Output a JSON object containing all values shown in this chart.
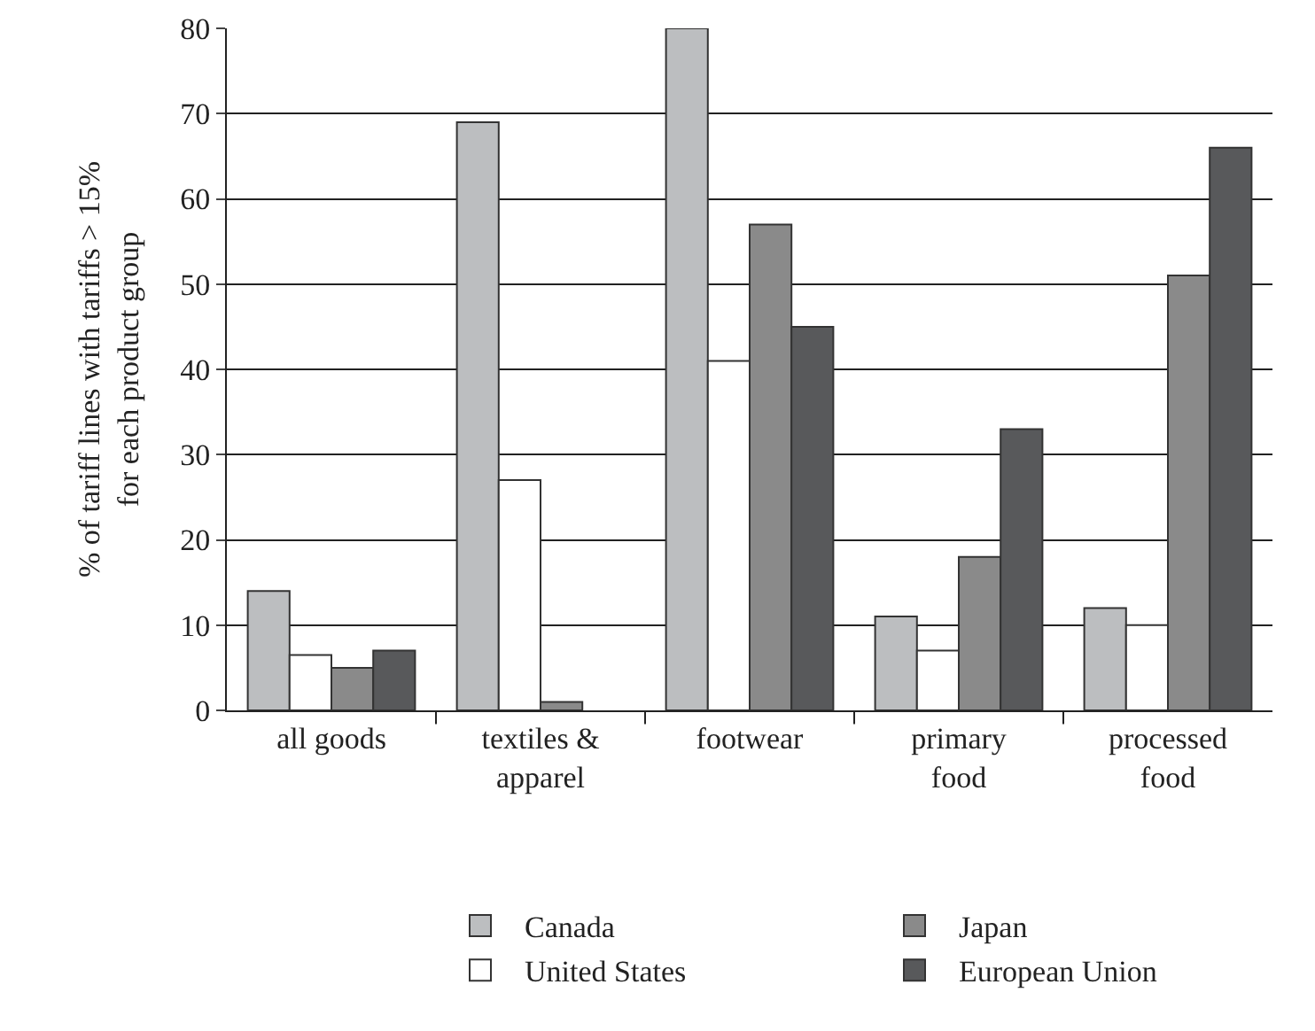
{
  "chart_data": {
    "type": "bar",
    "ylabel": "% of tariff lines with tariffs > 15%\nfor each product group",
    "categories": [
      "all goods",
      "textiles &\napparel",
      "footwear",
      "primary\nfood",
      "processed\nfood"
    ],
    "series": [
      {
        "name": "Canada",
        "color": "#bcbec0",
        "values": [
          14,
          69,
          80,
          11,
          12
        ]
      },
      {
        "name": "United States",
        "color": "#ffffff",
        "values": [
          6.5,
          27,
          41,
          7,
          10
        ]
      },
      {
        "name": "Japan",
        "color": "#8a8a8a",
        "values": [
          5,
          1,
          57,
          18,
          51
        ]
      },
      {
        "name": "European Union",
        "color": "#58595b",
        "values": [
          7,
          0,
          45,
          33,
          66
        ]
      }
    ],
    "ylim": [
      0,
      80
    ],
    "yticks": [
      0,
      10,
      20,
      30,
      40,
      50,
      60,
      70,
      80
    ],
    "grid": "y",
    "legend": "bottom"
  }
}
